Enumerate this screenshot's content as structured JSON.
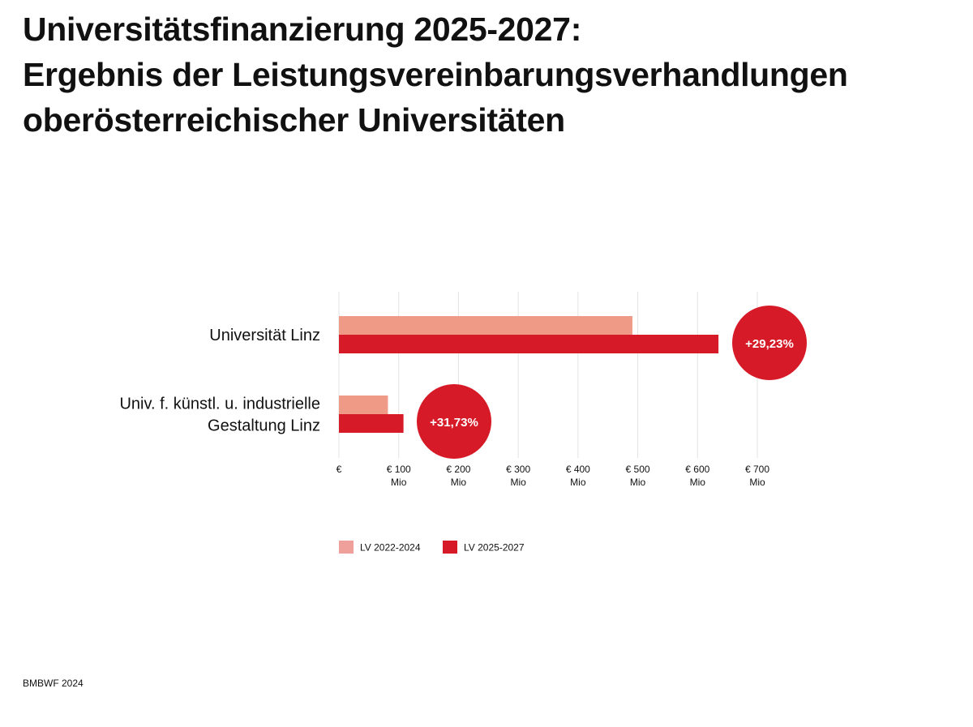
{
  "page": {
    "title_lines": [
      "Universitätsfinanzierung 2025-2027:",
      "Ergebnis der Leistungsvereinbarungsverhandlungen",
      "oberösterreichischer Universitäten"
    ],
    "source": "BMBWF 2024"
  },
  "chart_data": {
    "type": "bar",
    "orientation": "horizontal",
    "title": "Universitätsfinanzierung 2025-2027: Ergebnis der Leistungsvereinbarungsverhandlungen oberösterreichischer Universitäten",
    "unit": "€ Mio",
    "categories": [
      [
        "Universität Linz"
      ],
      [
        "Univ. f. künstl. u. industrielle",
        "Gestaltung Linz"
      ]
    ],
    "series": [
      {
        "name": "LV 2022-2024",
        "color": "#EE9A86",
        "values": [
          491,
          82
        ]
      },
      {
        "name": "LV 2025-2027",
        "color": "#D71A28",
        "values": [
          635,
          108
        ]
      }
    ],
    "change_badges": [
      "+29,23%",
      "+31,73%"
    ],
    "badge_color": "#D71A28",
    "xlim": [
      0,
      700
    ],
    "x_ticks": [
      {
        "value": 0,
        "label": "€",
        "sub": ""
      },
      {
        "value": 100,
        "label": "€ 100",
        "sub": "Mio"
      },
      {
        "value": 200,
        "label": "€ 200",
        "sub": "Mio"
      },
      {
        "value": 300,
        "label": "€ 300",
        "sub": "Mio"
      },
      {
        "value": 400,
        "label": "€ 400",
        "sub": "Mio"
      },
      {
        "value": 500,
        "label": "€ 500",
        "sub": "Mio"
      },
      {
        "value": 600,
        "label": "€ 600",
        "sub": "Mio"
      },
      {
        "value": 700,
        "label": "€ 700",
        "sub": "Mio"
      }
    ],
    "grid": "vertical",
    "legend_position": "bottom-left",
    "legend_colors": [
      "#F0A09A",
      "#D71A28"
    ]
  }
}
